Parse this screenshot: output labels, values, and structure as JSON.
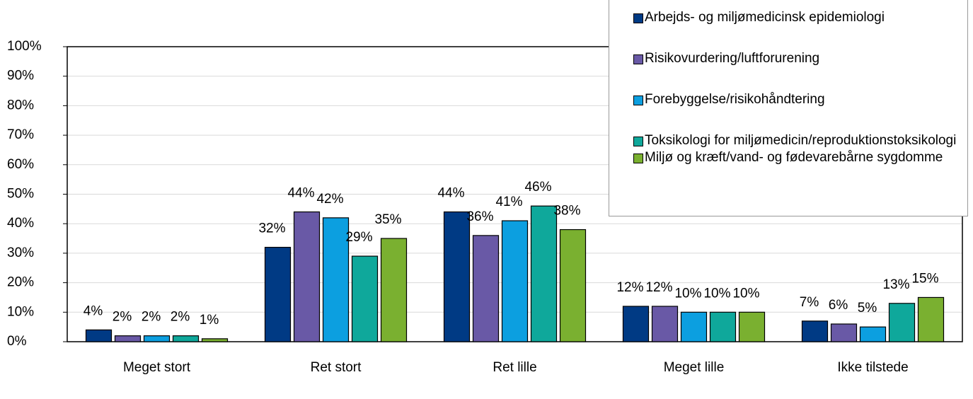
{
  "chart_data": {
    "type": "bar",
    "categories": [
      "Meget stort",
      "Ret stort",
      "Ret lille",
      "Meget lille",
      "Ikke tilstede"
    ],
    "series": [
      {
        "name": "Arbejds- og miljømedicinsk epidemiologi",
        "color": "#003a84",
        "values": [
          4,
          32,
          44,
          12,
          7
        ],
        "value_labels": [
          "4%",
          "32%",
          "44%",
          "12%",
          "7%"
        ]
      },
      {
        "name": "Risikovurdering/luftforurening",
        "color": "#6959a6",
        "values": [
          2,
          44,
          36,
          12,
          6
        ],
        "value_labels": [
          "2%",
          "44%",
          "36%",
          "12%",
          "6%"
        ]
      },
      {
        "name": "Forebyggelse/risikohåndtering",
        "color": "#0c9fe0",
        "values": [
          2,
          42,
          41,
          10,
          5
        ],
        "value_labels": [
          "2%",
          "42%",
          "41%",
          "10%",
          "5%"
        ]
      },
      {
        "name": "Toksikologi for miljømedicin/reproduktionstoksikologi",
        "color": "#0fa89b",
        "values": [
          2,
          29,
          46,
          10,
          13
        ],
        "value_labels": [
          "2%",
          "29%",
          "46%",
          "10%",
          "13%"
        ]
      },
      {
        "name": "Miljø og kræft/vand- og fødevarebårne sygdomme",
        "color": "#7ab030",
        "values": [
          1,
          35,
          38,
          10,
          15
        ],
        "value_labels": [
          "1%",
          "35%",
          "38%",
          "10%",
          "15%"
        ]
      }
    ],
    "ylim": [
      0,
      100
    ],
    "yticks": [
      {
        "value": 0,
        "label": "0%"
      },
      {
        "value": 10,
        "label": "10%"
      },
      {
        "value": 20,
        "label": "20%"
      },
      {
        "value": 30,
        "label": "30%"
      },
      {
        "value": 40,
        "label": "40%"
      },
      {
        "value": 50,
        "label": "50%"
      },
      {
        "value": 60,
        "label": "60%"
      },
      {
        "value": 70,
        "label": "70%"
      },
      {
        "value": 80,
        "label": "80%"
      },
      {
        "value": 90,
        "label": "90%"
      },
      {
        "value": 100,
        "label": "100%"
      }
    ],
    "grid": true,
    "legend": "top-right"
  }
}
